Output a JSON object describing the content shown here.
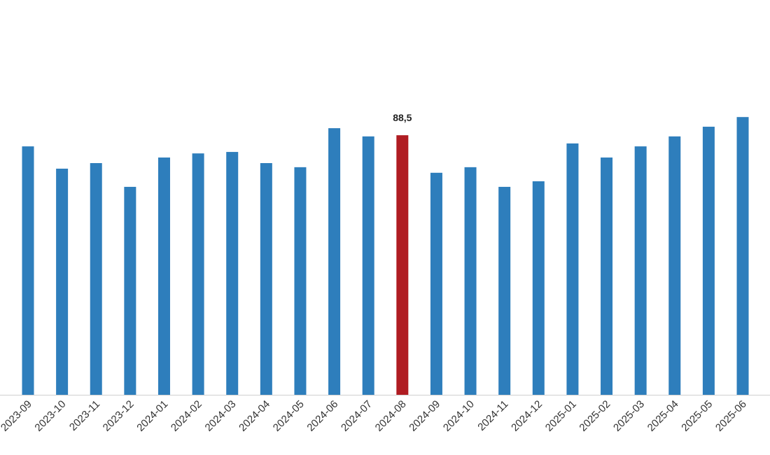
{
  "chart_data": {
    "type": "bar",
    "categories": [
      "2023-09",
      "2023-10",
      "2023-11",
      "2023-12",
      "2024-01",
      "2024-02",
      "2024-03",
      "2024-04",
      "2024-05",
      "2024-06",
      "2024-07",
      "2024-08",
      "2024-09",
      "2024-10",
      "2024-11",
      "2024-12",
      "2025-01",
      "2025-02",
      "2025-03",
      "2025-04",
      "2025-05",
      "2025-06"
    ],
    "values": [
      84.7,
      77.1,
      79.0,
      70.9,
      80.9,
      82.3,
      82.8,
      79.0,
      77.6,
      90.9,
      88.1,
      88.5,
      75.7,
      77.6,
      70.9,
      72.8,
      85.7,
      80.9,
      84.7,
      88.1,
      91.4,
      94.7
    ],
    "value_labels": [
      null,
      null,
      null,
      null,
      null,
      null,
      null,
      null,
      null,
      null,
      null,
      "88,5",
      null,
      null,
      null,
      null,
      null,
      null,
      null,
      null,
      null,
      null
    ],
    "colors": [
      "#2e7ebc",
      "#2e7ebc",
      "#2e7ebc",
      "#2e7ebc",
      "#2e7ebc",
      "#2e7ebc",
      "#2e7ebc",
      "#2e7ebc",
      "#2e7ebc",
      "#2e7ebc",
      "#2e7ebc",
      "#b01c22",
      "#2e7ebc",
      "#2e7ebc",
      "#2e7ebc",
      "#2e7ebc",
      "#2e7ebc",
      "#2e7ebc",
      "#2e7ebc",
      "#2e7ebc",
      "#2e7ebc",
      "#2e7ebc"
    ],
    "ylim": [
      0,
      100
    ]
  }
}
